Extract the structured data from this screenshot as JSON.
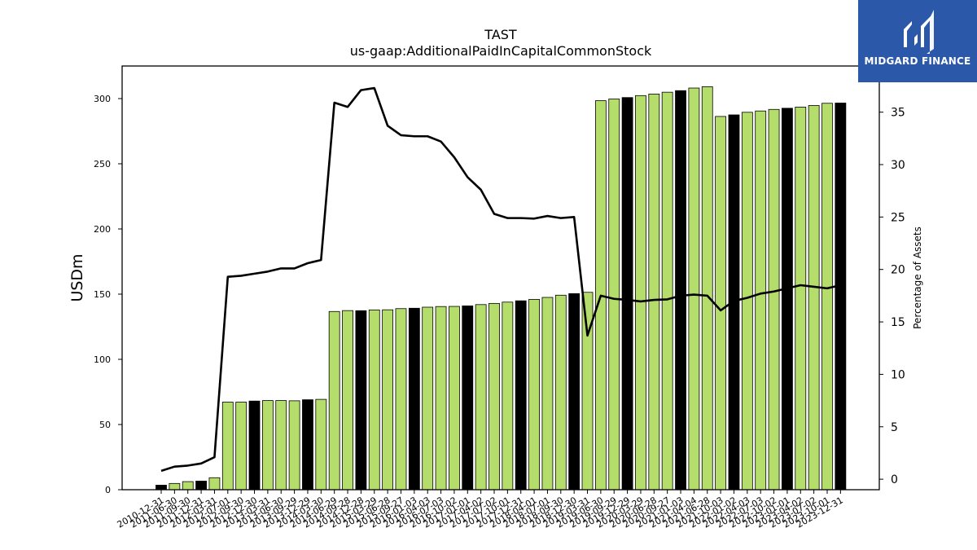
{
  "chart_data": {
    "type": "bar",
    "title": "TAST",
    "subtitle": "us-gaap:AdditionalPaidInCapitalCommonStock",
    "ylabel": "USDm",
    "y2label": "Percentage of Assets",
    "ylim": [
      0,
      325
    ],
    "y2lim": [
      -1,
      39.4
    ],
    "yticks": [
      0,
      50,
      100,
      150,
      200,
      250,
      300
    ],
    "y2ticks": [
      0,
      5,
      10,
      15,
      20,
      25,
      30,
      35
    ],
    "categories": [
      "2010-12-31",
      "2011-06-30",
      "2011-09-30",
      "2011-12-31",
      "2012-03-31",
      "2012-07-01",
      "2012-09-30",
      "2012-12-30",
      "2013-03-31",
      "2013-06-30",
      "2013-09-29",
      "2013-12-29",
      "2014-03-30",
      "2014-06-29",
      "2014-09-28",
      "2014-12-28",
      "2015-03-29",
      "2015-06-28",
      "2015-09-27",
      "2016-01-03",
      "2016-04-03",
      "2016-07-03",
      "2016-10-02",
      "2017-01-01",
      "2017-04-02",
      "2017-07-02",
      "2017-10-01",
      "2017-12-31",
      "2018-04-01",
      "2018-07-01",
      "2018-09-30",
      "2018-12-30",
      "2019-03-31",
      "2019-06-30",
      "2019-09-29",
      "2019-12-29",
      "2020-03-29",
      "2020-06-28",
      "2020-09-27",
      "2021-01-03",
      "2021-04-04",
      "2021-06-28",
      "2021-10-03",
      "2022-01-02",
      "2022-04-03",
      "2022-07-03",
      "2022-10-02",
      "2023-01-01",
      "2023-04-02",
      "2023-07-02",
      "2023-10-01",
      "2023-12-31"
    ],
    "series": [
      {
        "type": "bar",
        "values": [
          3.5,
          4.8,
          6.2,
          6.6,
          9.2,
          67.2,
          67.2,
          68.0,
          68.4,
          68.4,
          68.2,
          69.0,
          69.3,
          136.7,
          137.4,
          137.3,
          137.9,
          138.0,
          138.9,
          139.2,
          140.0,
          140.5,
          140.6,
          141.0,
          142.0,
          142.9,
          143.9,
          144.9,
          146.0,
          147.5,
          149.2,
          150.4,
          151.4,
          298.4,
          299.7,
          300.8,
          302.3,
          303.5,
          304.9,
          306.1,
          308.1,
          309.1,
          286.3,
          287.5,
          289.5,
          290.5,
          291.7,
          292.6,
          293.5,
          294.7,
          296.4,
          296.6
        ],
        "highlighted": [
          0,
          3,
          7,
          11,
          15,
          19,
          23,
          27,
          31,
          35,
          39,
          43,
          47,
          51
        ]
      },
      {
        "type": "line",
        "axis": "right",
        "values": [
          0.8,
          1.2,
          1.3,
          1.5,
          2.1,
          19.3,
          19.4,
          19.6,
          19.8,
          20.1,
          20.1,
          20.6,
          20.9,
          35.9,
          35.5,
          37.1,
          37.3,
          33.7,
          32.8,
          32.7,
          32.7,
          32.2,
          30.7,
          28.8,
          27.6,
          25.3,
          24.9,
          24.9,
          24.85,
          25.1,
          24.9,
          25.0,
          13.7,
          17.5,
          17.2,
          17.1,
          16.95,
          17.1,
          17.15,
          17.5,
          17.6,
          17.5,
          16.1,
          17.0,
          17.3,
          17.7,
          17.9,
          18.2,
          18.5,
          18.35,
          18.2,
          18.5
        ]
      }
    ],
    "colors": {
      "bar": "#b5dd6b",
      "bar_highlight": "#000000",
      "bar_edge": "#000000",
      "line": "#000000"
    },
    "grid": false
  },
  "logo": {
    "name": "MIDGARD FINANCE",
    "background": "#2b58a8"
  }
}
